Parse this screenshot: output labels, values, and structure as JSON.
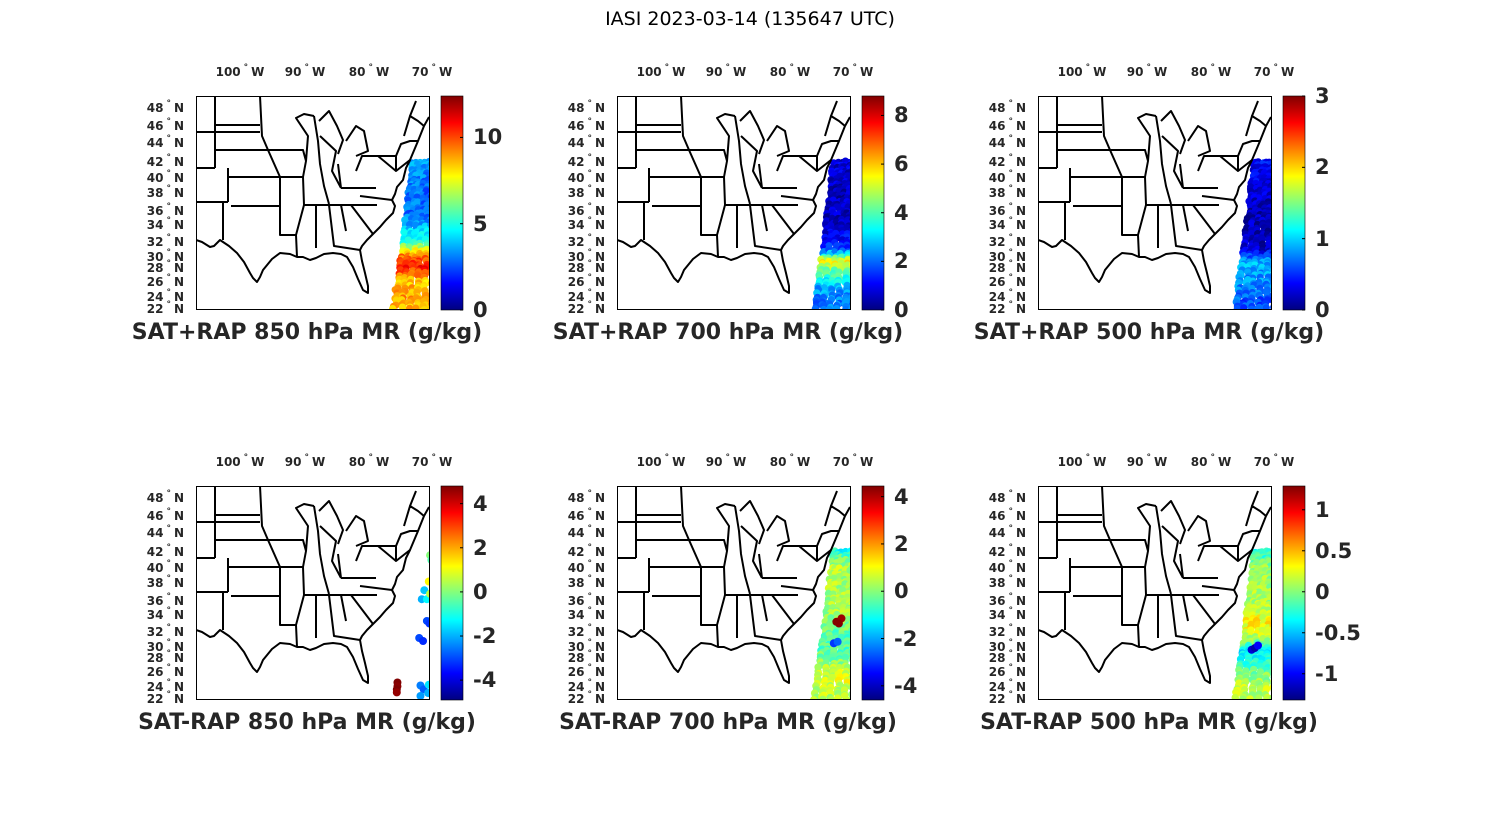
{
  "title": "IASI 2023-03-14 (135647 UTC)",
  "colormap": "jet",
  "chart_data": [
    {
      "type": "heatmap",
      "title": "SAT+RAP 850 hPa MR (g/kg)",
      "lon_ticks": [
        "100° W",
        "90° W",
        "80° W",
        "70° W"
      ],
      "lat_ticks": [
        "48° N",
        "46° N",
        "44° N",
        "42° N",
        "40° N",
        "38° N",
        "36° N",
        "34° N",
        "32° N",
        "30° N",
        "28° N",
        "26° N",
        "24° N",
        "22° N"
      ],
      "colorbar": {
        "range": [
          0,
          12.4
        ],
        "ticks": [
          0,
          5,
          10
        ],
        "tick_labels": [
          "0",
          "5",
          "10"
        ]
      },
      "swath_profile": [
        {
          "lat": 42,
          "value": 3.5
        },
        {
          "lat": 38,
          "value": 2.8
        },
        {
          "lat": 35,
          "value": 3
        },
        {
          "lat": 32,
          "value": 5
        },
        {
          "lat": 30,
          "value": 9.5
        },
        {
          "lat": 28,
          "value": 10.5
        },
        {
          "lat": 26,
          "value": 8.5
        },
        {
          "lat": 24,
          "value": 9
        },
        {
          "lat": 22,
          "value": 8.5
        }
      ]
    },
    {
      "type": "heatmap",
      "title": "SAT+RAP 700 hPa MR (g/kg)",
      "lon_ticks": [
        "100° W",
        "90° W",
        "80° W",
        "70° W"
      ],
      "lat_ticks": [
        "48° N",
        "46° N",
        "44° N",
        "42° N",
        "40° N",
        "38° N",
        "36° N",
        "34° N",
        "32° N",
        "30° N",
        "28° N",
        "26° N",
        "24° N",
        "22° N"
      ],
      "colorbar": {
        "range": [
          0,
          8.8
        ],
        "ticks": [
          0,
          2,
          4,
          6,
          8
        ],
        "tick_labels": [
          "0",
          "2",
          "4",
          "6",
          "8"
        ]
      },
      "swath_profile": [
        {
          "lat": 42,
          "value": 0.8
        },
        {
          "lat": 38,
          "value": 0.5
        },
        {
          "lat": 34,
          "value": 0.6
        },
        {
          "lat": 31,
          "value": 1.5
        },
        {
          "lat": 29,
          "value": 5.5
        },
        {
          "lat": 27,
          "value": 4
        },
        {
          "lat": 25,
          "value": 2.5
        },
        {
          "lat": 22,
          "value": 2
        }
      ]
    },
    {
      "type": "heatmap",
      "title": "SAT+RAP 500 hPa MR (g/kg)",
      "lon_ticks": [
        "100° W",
        "90° W",
        "80° W",
        "70° W"
      ],
      "lat_ticks": [
        "48° N",
        "46° N",
        "44° N",
        "42° N",
        "40° N",
        "38° N",
        "36° N",
        "34° N",
        "32° N",
        "30° N",
        "28° N",
        "26° N",
        "24° N",
        "22° N"
      ],
      "colorbar": {
        "range": [
          0,
          3
        ],
        "ticks": [
          0,
          1,
          2,
          3
        ],
        "tick_labels": [
          "0",
          "1",
          "2",
          "3"
        ]
      },
      "swath_profile": [
        {
          "lat": 42,
          "value": 0.4
        },
        {
          "lat": 36,
          "value": 0.15
        },
        {
          "lat": 31,
          "value": 0.2
        },
        {
          "lat": 29,
          "value": 0.9
        },
        {
          "lat": 26,
          "value": 0.8
        },
        {
          "lat": 22,
          "value": 0.55
        }
      ]
    },
    {
      "type": "scatter",
      "title": "SAT-RAP 850 hPa MR (g/kg)",
      "lon_ticks": [
        "100° W",
        "90° W",
        "80° W",
        "70° W"
      ],
      "lat_ticks": [
        "48° N",
        "46° N",
        "44° N",
        "42° N",
        "40° N",
        "38° N",
        "36° N",
        "34° N",
        "32° N",
        "30° N",
        "28° N",
        "26° N",
        "24° N",
        "22° N"
      ],
      "colorbar": {
        "range": [
          -4.9,
          4.8
        ],
        "ticks": [
          -4,
          -2,
          0,
          2,
          4
        ],
        "tick_labels": [
          "-4",
          "-2",
          "0",
          "2",
          "4"
        ]
      },
      "points": [
        {
          "lat": 41.6,
          "lon": -70.3,
          "value": 0
        },
        {
          "lat": 41,
          "lon": -70.1,
          "value": -0.5
        },
        {
          "lat": 38.2,
          "lon": -70.5,
          "value": 1.2
        },
        {
          "lat": 37.2,
          "lon": -71.2,
          "value": -1.8
        },
        {
          "lat": 36.2,
          "lon": -71.6,
          "value": -2
        },
        {
          "lat": 36.2,
          "lon": -70.8,
          "value": -1.3
        },
        {
          "lat": 36.8,
          "lon": -70.3,
          "value": 0.5
        },
        {
          "lat": 33.3,
          "lon": -70.8,
          "value": -3
        },
        {
          "lat": 33,
          "lon": -70.4,
          "value": -3.2
        },
        {
          "lat": 31.2,
          "lon": -72,
          "value": -3
        },
        {
          "lat": 30.8,
          "lon": -71.4,
          "value": -3.3
        },
        {
          "lat": 24.6,
          "lon": -75.4,
          "value": 4.8
        },
        {
          "lat": 24.1,
          "lon": -75.4,
          "value": 4.7
        },
        {
          "lat": 23.6,
          "lon": -75.5,
          "value": 4.8
        },
        {
          "lat": 23.1,
          "lon": -75.5,
          "value": 4.6
        },
        {
          "lat": 24.2,
          "lon": -71.8,
          "value": -2.5
        },
        {
          "lat": 23.6,
          "lon": -71.3,
          "value": -2.8
        },
        {
          "lat": 23,
          "lon": -70.6,
          "value": -2
        },
        {
          "lat": 24.3,
          "lon": -70.5,
          "value": -1.5
        },
        {
          "lat": 22.5,
          "lon": -71.8,
          "value": -2.2
        }
      ]
    },
    {
      "type": "heatmap",
      "title": "SAT-RAP 700 hPa MR (g/kg)",
      "lon_ticks": [
        "100° W",
        "90° W",
        "80° W",
        "70° W"
      ],
      "lat_ticks": [
        "48° N",
        "46° N",
        "44° N",
        "42° N",
        "40° N",
        "38° N",
        "36° N",
        "34° N",
        "32° N",
        "30° N",
        "28° N",
        "26° N",
        "24° N",
        "22° N"
      ],
      "colorbar": {
        "range": [
          -4.6,
          4.45
        ],
        "ticks": [
          -4,
          -2,
          0,
          2,
          4
        ],
        "tick_labels": [
          "-4",
          "-2",
          "0",
          "2",
          "4"
        ]
      },
      "swath_profile": [
        {
          "lat": 42,
          "value": -1
        },
        {
          "lat": 40,
          "value": 0.4
        },
        {
          "lat": 34,
          "value": 0.2
        },
        {
          "lat": 31,
          "value": -0.5
        },
        {
          "lat": 28,
          "value": -0.3
        },
        {
          "lat": 25,
          "value": 0.8
        },
        {
          "lat": 22,
          "value": 0.3
        }
      ],
      "points": [
        {
          "lat": 33.2,
          "lon": -72.6,
          "value": 4.4
        },
        {
          "lat": 33.6,
          "lon": -71.8,
          "value": 4.2
        },
        {
          "lat": 33,
          "lon": -72.2,
          "value": 4.4
        },
        {
          "lat": 30.5,
          "lon": -73,
          "value": -3
        },
        {
          "lat": 30.7,
          "lon": -72.4,
          "value": -2.6
        }
      ]
    },
    {
      "type": "heatmap",
      "title": "SAT-RAP 500 hPa MR (g/kg)",
      "lon_ticks": [
        "100° W",
        "90° W",
        "80° W",
        "70° W"
      ],
      "lat_ticks": [
        "48° N",
        "46° N",
        "44° N",
        "42° N",
        "40° N",
        "38° N",
        "36° N",
        "34° N",
        "32° N",
        "30° N",
        "28° N",
        "26° N",
        "24° N",
        "22° N"
      ],
      "colorbar": {
        "range": [
          -1.32,
          1.29
        ],
        "ticks": [
          -1,
          -0.5,
          0,
          0.5,
          1
        ],
        "tick_labels": [
          "-1",
          "-0.5",
          "0",
          "0.5",
          "1"
        ]
      },
      "swath_profile": [
        {
          "lat": 42,
          "value": -0.3
        },
        {
          "lat": 40,
          "value": 0.05
        },
        {
          "lat": 35,
          "value": 0.1
        },
        {
          "lat": 33,
          "value": 0.35
        },
        {
          "lat": 31,
          "value": 0.1
        },
        {
          "lat": 29,
          "value": -0.4
        },
        {
          "lat": 27,
          "value": -0.2
        },
        {
          "lat": 24,
          "value": 0.15
        },
        {
          "lat": 22,
          "value": 0.1
        }
      ],
      "points": [
        {
          "lat": 29.5,
          "lon": -73.5,
          "value": -1.1
        },
        {
          "lat": 29.8,
          "lon": -73,
          "value": -1.2
        },
        {
          "lat": 30.2,
          "lon": -72.5,
          "value": -1
        }
      ]
    }
  ]
}
